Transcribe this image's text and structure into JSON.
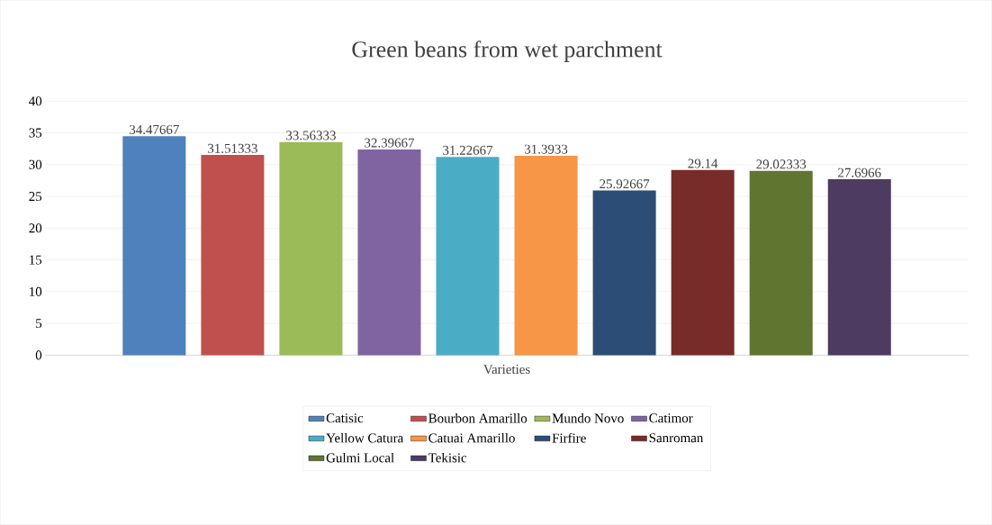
{
  "chart_data": {
    "type": "bar",
    "title": "Green beans from wet parchment",
    "xlabel": "Varieties",
    "categories": [
      null
    ],
    "series": [
      {
        "name": "Catisic",
        "color": "#4f81bd",
        "values": [
          34.47667
        ]
      },
      {
        "name": "Bourbon Amarillo",
        "color": "#c0504d",
        "values": [
          31.51333
        ]
      },
      {
        "name": "Mundo Novo",
        "color": "#9bbb59",
        "values": [
          33.56333
        ]
      },
      {
        "name": "Catimor",
        "color": "#8064a2",
        "values": [
          32.39667
        ]
      },
      {
        "name": "Yellow Catura",
        "color": "#4bacc6",
        "values": [
          31.22667
        ]
      },
      {
        "name": "Catuai Amarillo",
        "color": "#f79646",
        "values": [
          31.3933
        ]
      },
      {
        "name": "Firfire",
        "color": "#2c4d75",
        "values": [
          25.92667
        ]
      },
      {
        "name": "Sanroman",
        "color": "#772c2a",
        "values": [
          29.14
        ]
      },
      {
        "name": "Gulmi Local",
        "color": "#5f7530",
        "values": [
          29.02333
        ]
      },
      {
        "name": "Tekisic",
        "color": "#4d3b62",
        "values": [
          27.6966
        ]
      }
    ],
    "ylim": [
      0,
      40
    ],
    "yticks": [
      0,
      5,
      10,
      15,
      20,
      25,
      30,
      35,
      40
    ],
    "grid": "y",
    "data_labels": true,
    "legend": "bottom"
  }
}
